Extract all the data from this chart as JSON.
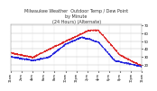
{
  "title": "Milwaukee Weather  Outdoor Temp / Dew Point\nby Minute\n(24 Hours) (Alternate)",
  "title_fontsize": 3.5,
  "background_color": "#ffffff",
  "grid_color": "#bbbbbb",
  "ylim": [
    12,
    72
  ],
  "yticks": [
    20,
    30,
    40,
    50,
    60,
    70
  ],
  "temp_color": "#dd2222",
  "dew_color": "#2222dd",
  "linewidth": 0.55,
  "num_xticks": 13,
  "x_label_fontsize": 2.5,
  "y_label_fontsize": 2.8
}
